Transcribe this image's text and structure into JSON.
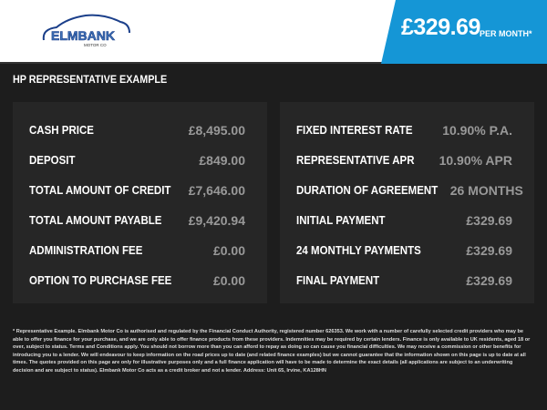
{
  "header": {
    "logo_text": "ELMBANK",
    "logo_sub": "MOTOR CO",
    "price": "£329.69",
    "per_month": "PER MONTH*",
    "accent": "#1596d6"
  },
  "title": "HP REPRESENTATIVE EXAMPLE",
  "left": [
    {
      "label": "CASH PRICE",
      "value": "£8,495.00"
    },
    {
      "label": "DEPOSIT",
      "value": "£849.00"
    },
    {
      "label": "TOTAL AMOUNT OF CREDIT",
      "value": "£7,646.00"
    },
    {
      "label": "TOTAL AMOUNT PAYABLE",
      "value": "£9,420.94"
    },
    {
      "label": "ADMINISTRATION FEE",
      "value": "£0.00"
    },
    {
      "label": "OPTION TO PURCHASE FEE",
      "value": "£0.00"
    }
  ],
  "right": [
    {
      "label": "FIXED INTEREST RATE",
      "value": "10.90% P.A."
    },
    {
      "label": "REPRESENTATIVE APR",
      "value": "10.90% APR"
    },
    {
      "label": "DURATION OF AGREEMENT",
      "value": "26 MONTHS"
    },
    {
      "label": "INITIAL PAYMENT",
      "value": "£329.69"
    },
    {
      "label": "24 MONTHLY PAYMENTS",
      "value": "£329.69"
    },
    {
      "label": "FINAL PAYMENT",
      "value": "£329.69"
    }
  ],
  "footer": "* Representative Example. Elmbank Motor Co is authorised and regulated by the Financial Conduct Authority, registered number 626353. We work with a number of carefully selected credit providers who may be able to offer you finance for your purchase, and we are only able to offer finance products from these providers. Indemnities may be required by certain lenders. Finance is only available to UK residents, aged 18 or over, subject to status. Terms and Conditions apply. You should not borrow more than you can afford to repay as doing so can cause you financial difficulties. We may receive a commission or other benefits for introducing you to a lender. We will endeavour to keep information on the road prices up to date (and related finance examples) but we cannot guarantee that the information shown on this page is up to date at all times. The quotes provided on this page are only for illustrative purposes only and a full finance application will have to be made to determine the exact details (all applications are subject to an underwriting decision and are subject to status). Elmbank Motor Co acts as a credit broker and not a lender. Address: Unit 65, Irvine, KA128HN"
}
